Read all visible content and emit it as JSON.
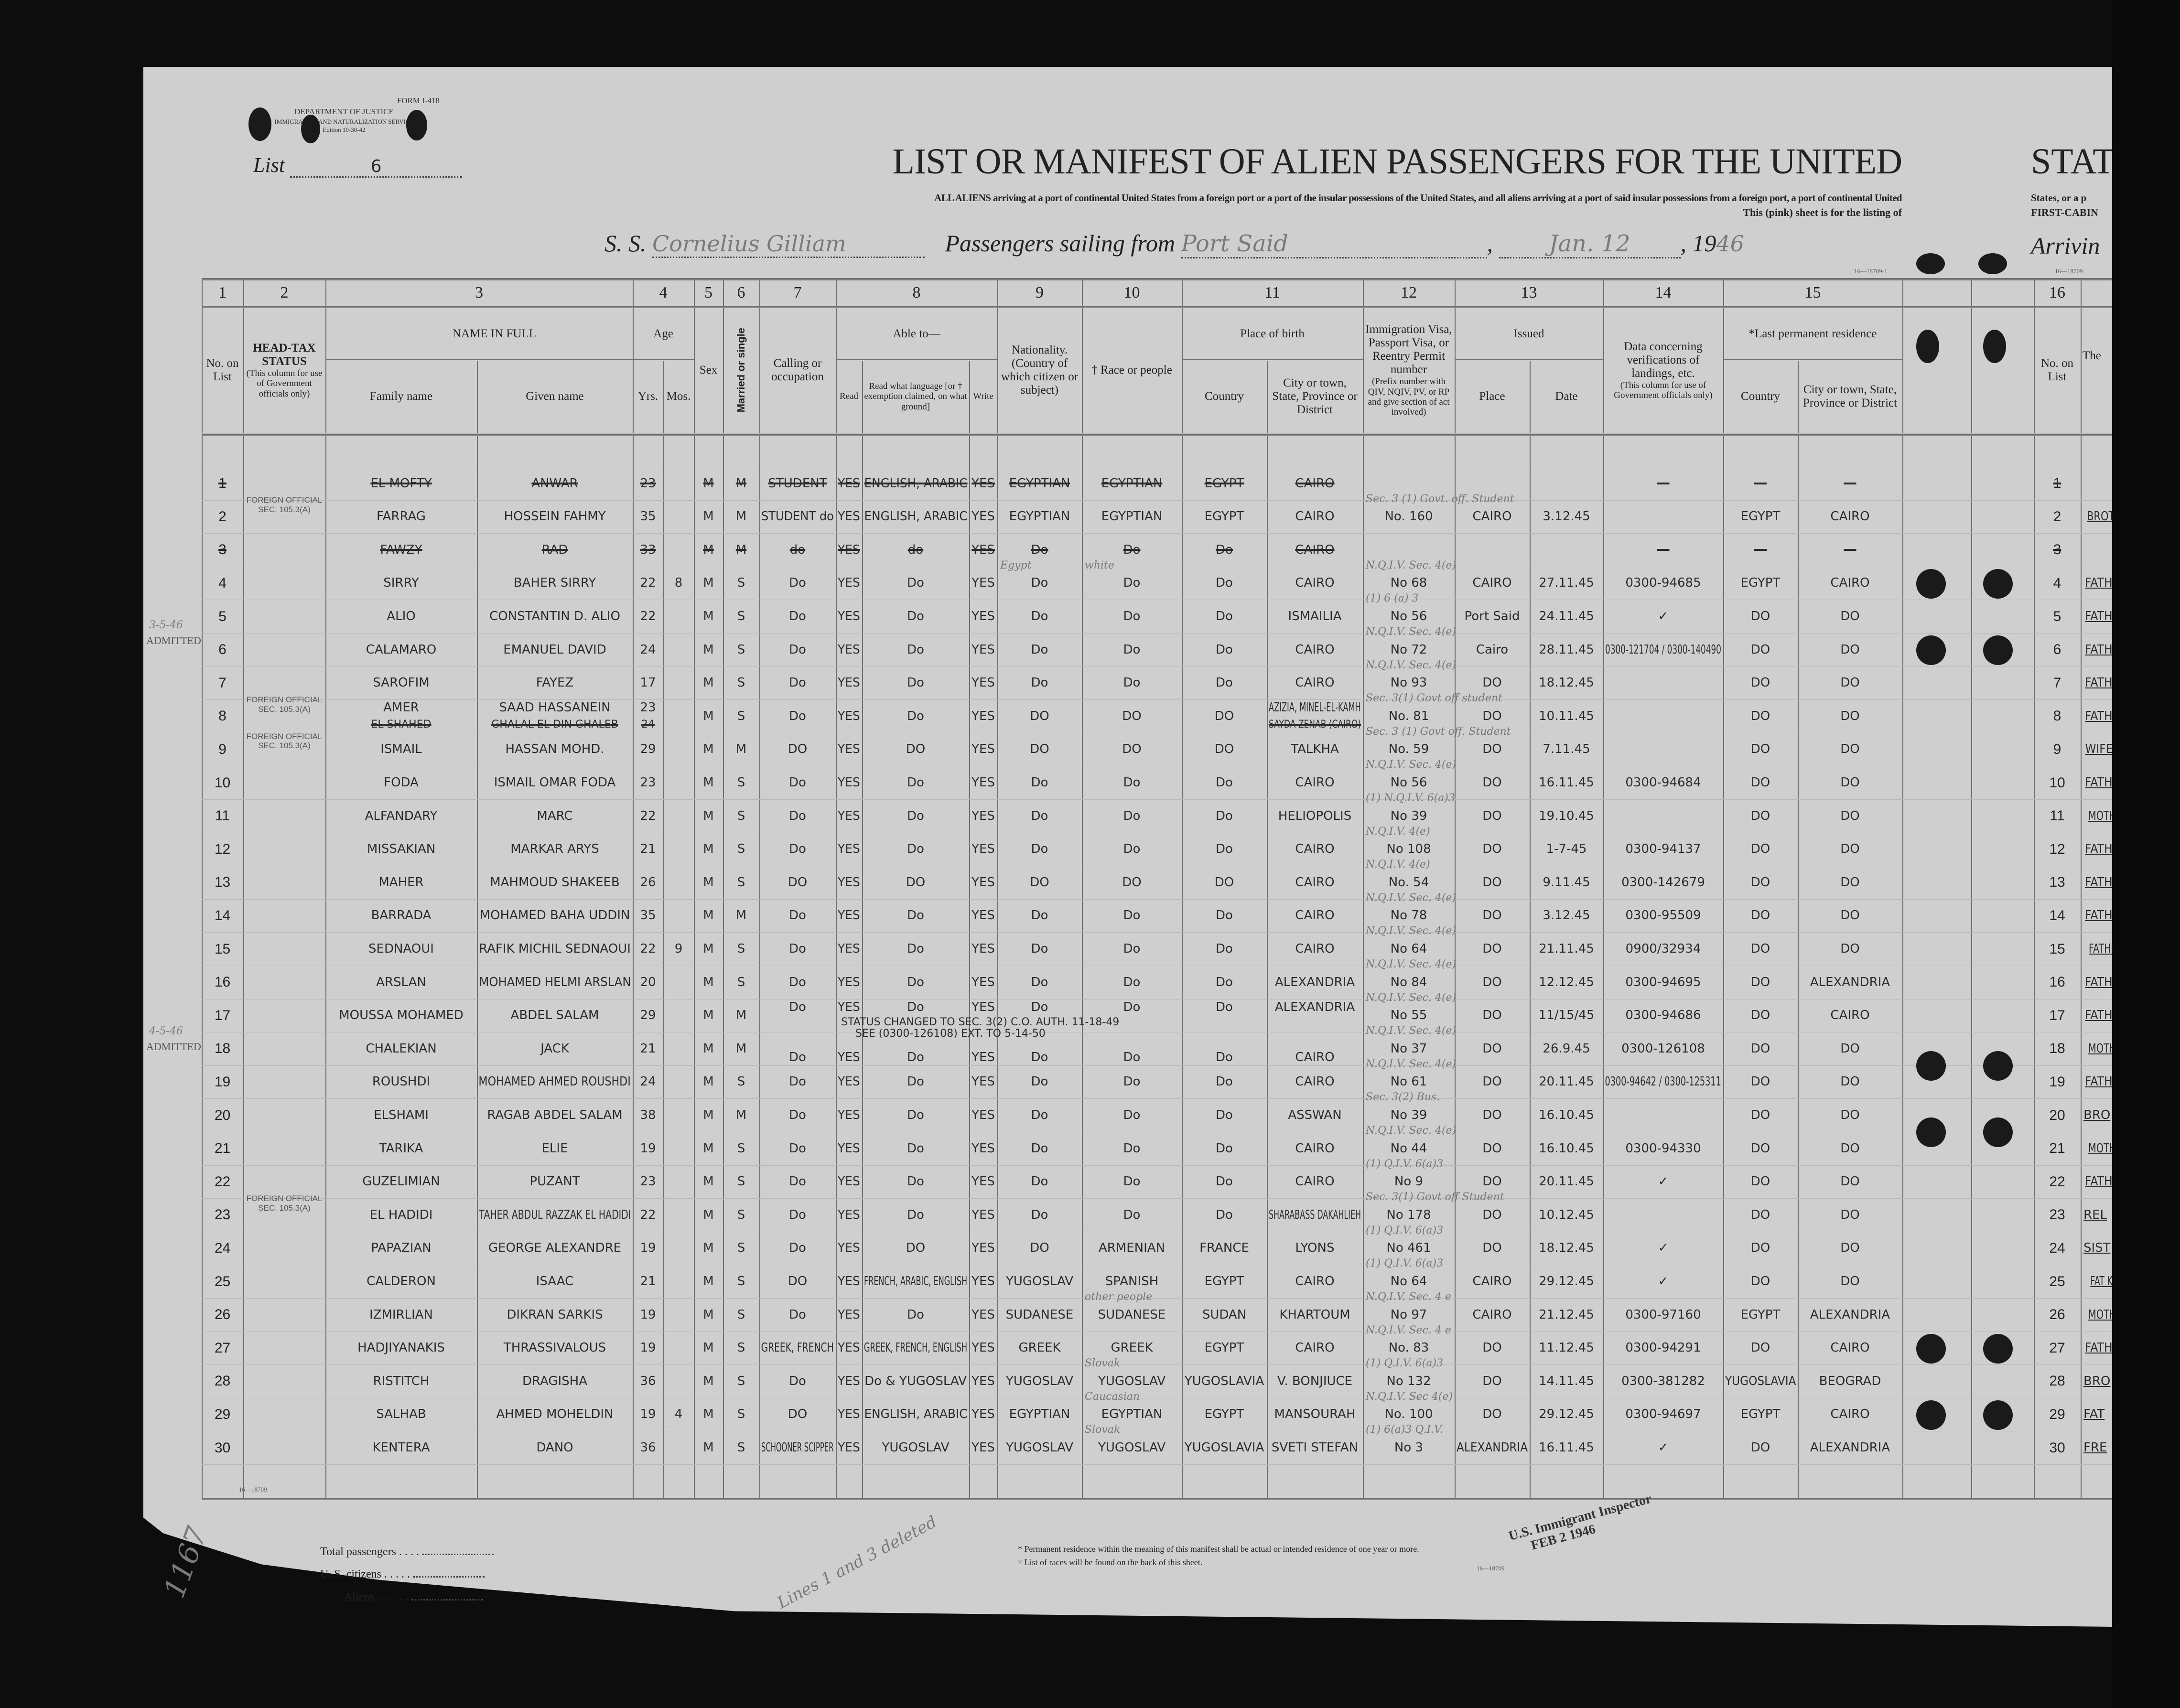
{
  "stamp": {
    "form": "FORM I-418",
    "dept": "DEPARTMENT OF JUSTICE",
    "service": "IMMIGRATION AND NATURALIZATION SERVICE",
    "edition": "Edition 10-30-42"
  },
  "list": {
    "label": "List",
    "value": "6"
  },
  "title": "LIST OR MANIFEST OF ALIEN PASSENGERS FOR THE UNITED",
  "subtitle": "ALL ALIENS arriving at a port of continental United States from a foreign port or a port of the insular possessions of the United States, and all aliens arriving at a port of said insular possessions from a foreign port, a port of continental United",
  "sheet_note": "This (pink) sheet is for the listing of",
  "voyage": {
    "ss_label": "S. S.",
    "ship": "Cornelius Gilliam",
    "sailing_label": "Passengers sailing from",
    "port": "Port Said",
    "date": "Jan. 12",
    "year_prefix": "19",
    "year_suffix": "46"
  },
  "right_page": {
    "title_fragment": "STAT",
    "line1": "States, or a p",
    "line2": "FIRST-CABIN",
    "arriving": "Arrivin",
    "col16": "16",
    "no_on_list": "No. on List",
    "col17": "The"
  },
  "form_codes": {
    "top": "16—18709-1",
    "top_right": "16—18709",
    "left_bottom": "16—18709",
    "footer": "16—18709"
  },
  "header": {
    "col_numbers": [
      "1",
      "2",
      "3",
      "4",
      "5",
      "6",
      "7",
      "8",
      "9",
      "10",
      "11",
      "12",
      "13",
      "14",
      "15"
    ],
    "no_on_list": "No. on List",
    "head_tax": "HEAD-TAX STATUS",
    "head_tax_note": "(This column for use of Government officials only)",
    "name_in_full": "NAME IN FULL",
    "family_name": "Family name",
    "given_name": "Given name",
    "age": "Age",
    "yrs": "Yrs.",
    "mos": "Mos.",
    "sex": "Sex",
    "married": "Married or single",
    "calling": "Calling or occupation",
    "able_to": "Able to—",
    "read": "Read",
    "read_lang": "Read what language [or † exemption claimed, on what ground]",
    "write": "Write",
    "nationality": "Nationality. (Country of which citizen or subject)",
    "race": "† Race or people",
    "place_of_birth": "Place of birth",
    "country": "Country",
    "city": "City or town, State, Province or District",
    "visa": "Immigration Visa, Passport Visa, or Reentry Permit number",
    "visa_note": "(Prefix number with QIV, NQIV, PV, or RP and give section of act involved)",
    "issued": "Issued",
    "place": "Place",
    "date": "Date",
    "data14": "Data concerning verifications of landings, etc.",
    "data14_note": "(This column for use of Government officials only)",
    "last_res": "*Last permanent residence",
    "res_country": "Country",
    "res_city": "City or town, State, Province or District"
  },
  "rows": [
    {
      "n": "1",
      "fam": "EL MOFTY",
      "giv": "ANWAR",
      "yrs": "23",
      "mos": "",
      "sex": "M",
      "ms": "M",
      "occ": "STUDENT",
      "read": "YES",
      "lang": "ENGLISH, ARABIC",
      "write": "YES",
      "nat": "EGYPTIAN",
      "race": "EGYPTIAN",
      "bc": "EGYPT",
      "bcity": "CAIRO",
      "visa": "",
      "ip": "",
      "idate": "",
      "ver": "—",
      "rc": "—",
      "rcity": "—",
      "rel": "",
      "struck": true
    },
    {
      "n": "2",
      "tax": "FOREIGN OFFICIAL SEC. 105.3(A)",
      "fam": "FARRAG",
      "giv": "HOSSEIN FAHMY",
      "yrs": "35",
      "mos": "",
      "sex": "M",
      "ms": "M",
      "occ": "STUDENT do",
      "read": "YES",
      "lang": "ENGLISH, ARABIC",
      "write": "YES",
      "nat": "EGYPTIAN",
      "race": "EGYPTIAN",
      "bc": "EGYPT",
      "bcity": "CAIRO",
      "visa": "No. 160",
      "vnote": "Sec. 3 (1) Govt. off. Student",
      "ip": "CAIRO",
      "idate": "3.12.45",
      "ver": "",
      "rc": "EGYPT",
      "rcity": "CAIRO",
      "rel": "BROT"
    },
    {
      "n": "3",
      "fam": "FAWZY",
      "giv": "RAD",
      "yrs": "33",
      "mos": "",
      "sex": "M",
      "ms": "M",
      "occ": "do",
      "read": "YES",
      "lang": "do",
      "write": "YES",
      "nat": "Do",
      "race": "Do",
      "bc": "Do",
      "bcity": "CAIRO",
      "visa": "",
      "ip": "",
      "idate": "",
      "ver": "—",
      "rc": "—",
      "rcity": "—",
      "rel": "",
      "struck": true
    },
    {
      "n": "4",
      "fam": "SIRRY",
      "giv": "BAHER SIRRY",
      "yrs": "22",
      "mos": "8",
      "sex": "M",
      "ms": "S",
      "occ": "Do",
      "read": "YES",
      "lang": "Do",
      "write": "YES",
      "nat": "Do",
      "nat_note": "Egypt",
      "race": "Do",
      "race_note": "white",
      "bc": "Do",
      "bcity": "CAIRO",
      "visa": "No 68",
      "vnote": "N.Q.I.V. Sec. 4(e)",
      "ip": "CAIRO",
      "idate": "27.11.45",
      "ver": "0300-94685",
      "rc": "EGYPT",
      "rcity": "CAIRO",
      "rel": "FATH"
    },
    {
      "n": "5",
      "fam": "ALIO",
      "giv": "CONSTANTIN D. ALIO",
      "yrs": "22",
      "mos": "",
      "sex": "M",
      "ms": "S",
      "occ": "Do",
      "read": "YES",
      "lang": "Do",
      "write": "YES",
      "nat": "Do",
      "race": "Do",
      "bc": "Do",
      "bcity": "ISMAILIA",
      "visa": "No 56",
      "vnote": "(1) 6 (a) 3",
      "ip": "Port Said",
      "idate": "24.11.45",
      "ver": "✓",
      "rc": "DO",
      "rcity": "DO",
      "rel": "FATH"
    },
    {
      "n": "6",
      "fam": "CALAMARO",
      "giv": "EMANUEL DAVID",
      "yrs": "24",
      "mos": "",
      "sex": "M",
      "ms": "S",
      "occ": "Do",
      "read": "YES",
      "lang": "Do",
      "write": "YES",
      "nat": "Do",
      "race": "Do",
      "bc": "Do",
      "bcity": "CAIRO",
      "visa": "No 72",
      "vnote": "N.Q.I.V. Sec. 4(e)",
      "ip": "Cairo",
      "idate": "28.11.45",
      "ver": "0300-121704 / 0300-140490",
      "rc": "DO",
      "rcity": "DO",
      "rel": "FATH"
    },
    {
      "n": "7",
      "fam": "SAROFIM",
      "giv": "FAYEZ",
      "yrs": "17",
      "mos": "",
      "sex": "M",
      "ms": "S",
      "occ": "Do",
      "read": "YES",
      "lang": "Do",
      "write": "YES",
      "nat": "Do",
      "race": "Do",
      "bc": "Do",
      "bcity": "CAIRO",
      "visa": "No 93",
      "vnote": "N.Q.I.V. Sec. 4(e)",
      "ip": "DO",
      "idate": "18.12.45",
      "ver": "",
      "rc": "DO",
      "rcity": "DO",
      "rel": "FATH"
    },
    {
      "n": "8",
      "tax": "FOREIGN OFFICIAL SEC. 105.3(A)",
      "tax2": "FOREIGN OFFICIAL SEC. 105.3(A)",
      "fam": "AMER",
      "giv": "SAAD HASSANEIN",
      "yrs": "23",
      "mos": "",
      "sex": "M",
      "ms": "S",
      "occ": "Do",
      "read": "YES",
      "lang": "Do",
      "write": "YES",
      "nat": "DO",
      "race": "DO",
      "bc": "DO",
      "bcity": "AZIZIA, MINEL-EL-KAMH",
      "visa": "No. 81",
      "vnote": "Sec. 3(1) Govt off student",
      "ip": "DO",
      "idate": "10.11.45",
      "ver": "",
      "rc": "DO",
      "rcity": "DO",
      "rel": "FATH",
      "struck_line": {
        "fam": "EL SHAHED",
        "giv": "GHALAL EL DIN GHALEB",
        "yrs": "24",
        "bcity": "SAYDA ZENAB (CAIRO)"
      }
    },
    {
      "n": "9",
      "fam": "ISMAIL",
      "giv": "HASSAN MOHD.",
      "yrs": "29",
      "mos": "",
      "sex": "M",
      "ms": "M",
      "occ": "DO",
      "read": "YES",
      "lang": "DO",
      "write": "YES",
      "nat": "DO",
      "race": "DO",
      "bc": "DO",
      "bcity": "TALKHA",
      "visa": "No. 59",
      "vnote": "Sec. 3 (1) Govt off. Student",
      "ip": "DO",
      "idate": "7.11.45",
      "ver": "",
      "rc": "DO",
      "rcity": "DO",
      "rel": "WIFE"
    },
    {
      "n": "10",
      "fam": "FODA",
      "giv": "ISMAIL OMAR FODA",
      "yrs": "23",
      "mos": "",
      "sex": "M",
      "ms": "S",
      "occ": "Do",
      "read": "YES",
      "lang": "Do",
      "write": "YES",
      "nat": "Do",
      "race": "Do",
      "bc": "Do",
      "bcity": "CAIRO",
      "visa": "No 56",
      "vnote": "N.Q.I.V. Sec. 4(e)",
      "ip": "DO",
      "idate": "16.11.45",
      "ver": "0300-94684",
      "rc": "DO",
      "rcity": "DO",
      "rel": "FATH"
    },
    {
      "n": "11",
      "fam": "ALFANDARY",
      "giv": "MARC",
      "yrs": "22",
      "mos": "",
      "sex": "M",
      "ms": "S",
      "occ": "Do",
      "read": "YES",
      "lang": "Do",
      "write": "YES",
      "nat": "Do",
      "race": "Do",
      "bc": "Do",
      "bcity": "HELIOPOLIS",
      "visa": "No 39",
      "vnote": "(1) N.Q.I.V. 6(a)3",
      "ip": "DO",
      "idate": "19.10.45",
      "ver": "",
      "rc": "DO",
      "rcity": "DO",
      "rel": "MOTH"
    },
    {
      "n": "12",
      "fam": "MISSAKIAN",
      "giv": "MARKAR ARYS",
      "yrs": "21",
      "mos": "",
      "sex": "M",
      "ms": "S",
      "occ": "Do",
      "read": "YES",
      "lang": "Do",
      "write": "YES",
      "nat": "Do",
      "race": "Do",
      "bc": "Do",
      "bcity": "CAIRO",
      "visa": "No 108",
      "vnote": "N.Q.I.V. 4(e)",
      "ip": "DO",
      "idate": "1-7-45",
      "ver": "0300-94137",
      "rc": "DO",
      "rcity": "DO",
      "rel": "FATH"
    },
    {
      "n": "13",
      "fam": "MAHER",
      "giv": "MAHMOUD SHAKEEB",
      "yrs": "26",
      "mos": "",
      "sex": "M",
      "ms": "S",
      "occ": "DO",
      "read": "YES",
      "lang": "DO",
      "write": "YES",
      "nat": "DO",
      "race": "DO",
      "bc": "DO",
      "bcity": "CAIRO",
      "visa": "No. 54",
      "vnote": "N.Q.I.V. 4(e)",
      "ip": "DO",
      "idate": "9.11.45",
      "ver": "0300-142679",
      "rc": "DO",
      "rcity": "DO",
      "rel": "FATH"
    },
    {
      "n": "14",
      "fam": "BARRADA",
      "giv": "MOHAMED BAHA UDDIN",
      "yrs": "35",
      "mos": "",
      "sex": "M",
      "ms": "M",
      "occ": "Do",
      "read": "YES",
      "lang": "Do",
      "write": "YES",
      "nat": "Do",
      "race": "Do",
      "bc": "Do",
      "bcity": "CAIRO",
      "visa": "No 78",
      "vnote": "N.Q.I.V. Sec. 4(e)",
      "ip": "DO",
      "idate": "3.12.45",
      "ver": "0300-95509",
      "rc": "DO",
      "rcity": "DO",
      "rel": "FATH"
    },
    {
      "n": "15",
      "fam": "SEDNAOUI",
      "giv": "RAFIK MICHIL SEDNAOUI",
      "yrs": "22",
      "mos": "9",
      "sex": "M",
      "ms": "S",
      "occ": "Do",
      "read": "YES",
      "lang": "Do",
      "write": "YES",
      "nat": "Do",
      "race": "Do",
      "bc": "Do",
      "bcity": "CAIRO",
      "visa": "No 64",
      "vnote": "N.Q.I.V. Sec. 4(e)",
      "ip": "DO",
      "idate": "21.11.45",
      "ver": "0900/32934",
      "rc": "DO",
      "rcity": "DO",
      "rel": "FATHE"
    },
    {
      "n": "16",
      "fam": "ARSLAN",
      "giv": "MOHAMED HELMI ARSLAN",
      "yrs": "20",
      "mos": "",
      "sex": "M",
      "ms": "S",
      "occ": "Do",
      "read": "YES",
      "lang": "Do",
      "write": "YES",
      "nat": "Do",
      "race": "Do",
      "bc": "Do",
      "bcity": "ALEXANDRIA",
      "visa": "No 84",
      "vnote": "N.Q.I.V. Sec. 4(e)",
      "ip": "DO",
      "idate": "12.12.45",
      "ver": "0300-94695",
      "rc": "DO",
      "rcity": "ALEXANDRIA",
      "rel": "FATH"
    },
    {
      "n": "17",
      "fam": "MOUSSA MOHAMED",
      "giv": "ABDEL SALAM",
      "yrs": "29",
      "mos": "",
      "sex": "M",
      "ms": "M",
      "occ": "Do",
      "read": "YES",
      "lang": "Do",
      "write": "YES",
      "nat": "Do",
      "race": "Do",
      "bc": "Do",
      "bcity": "ALEXANDRIA",
      "visa": "No 55",
      "vnote": "N.Q.I.V. Sec. 4(e)",
      "ip": "DO",
      "idate": "11/15/45",
      "ver": "0300-94686",
      "rc": "DO",
      "rcity": "CAIRO",
      "rel": "FATH"
    },
    {
      "n": "18",
      "fam": "CHALEKIAN",
      "giv": "JACK",
      "yrs": "21",
      "mos": "",
      "sex": "M",
      "ms": "M",
      "occ": "Do",
      "read": "YES",
      "lang": "Do",
      "write": "YES",
      "nat": "Do",
      "race": "Do",
      "bc": "Do",
      "bcity": "CAIRO",
      "visa": "No 37",
      "vnote": "N.Q.I.V. Sec. 4(e)",
      "ip": "DO",
      "idate": "26.9.45",
      "ver": "0300-126108",
      "rc": "DO",
      "rcity": "DO",
      "rel": "MOTH"
    },
    {
      "n": "19",
      "fam": "ROUSHDI",
      "giv": "MOHAMED AHMED ROUSHDI",
      "yrs": "24",
      "mos": "",
      "sex": "M",
      "ms": "S",
      "occ": "Do",
      "read": "YES",
      "lang": "Do",
      "write": "YES",
      "nat": "Do",
      "race": "Do",
      "bc": "Do",
      "bcity": "CAIRO",
      "visa": "No 61",
      "vnote": "N.Q.I.V. Sec. 4(e)",
      "ip": "DO",
      "idate": "20.11.45",
      "ver": "0300-94642 / 0300-125311",
      "rc": "DO",
      "rcity": "DO",
      "rel": "FATH"
    },
    {
      "n": "20",
      "fam": "ELSHAMI",
      "giv": "RAGAB ABDEL SALAM",
      "yrs": "38",
      "mos": "",
      "sex": "M",
      "ms": "M",
      "occ": "Do",
      "read": "YES",
      "lang": "Do",
      "write": "YES",
      "nat": "Do",
      "race": "Do",
      "bc": "Do",
      "bcity": "ASSWAN",
      "visa": "No 39",
      "vnote": "Sec. 3(2) Bus.",
      "ip": "DO",
      "idate": "16.10.45",
      "ver": "",
      "rc": "DO",
      "rcity": "DO",
      "rel": "BRO"
    },
    {
      "n": "21",
      "fam": "TARIKA",
      "giv": "ELIE",
      "yrs": "19",
      "mos": "",
      "sex": "M",
      "ms": "S",
      "occ": "Do",
      "read": "YES",
      "lang": "Do",
      "write": "YES",
      "nat": "Do",
      "race": "Do",
      "bc": "Do",
      "bcity": "CAIRO",
      "visa": "No 44",
      "vnote": "N.Q.I.V. Sec. 4(e)",
      "ip": "DO",
      "idate": "16.10.45",
      "ver": "0300-94330",
      "rc": "DO",
      "rcity": "DO",
      "rel": "MOTH"
    },
    {
      "n": "22",
      "fam": "GUZELIMIAN",
      "giv": "PUZANT",
      "yrs": "23",
      "mos": "",
      "sex": "M",
      "ms": "S",
      "occ": "Do",
      "read": "YES",
      "lang": "Do",
      "write": "YES",
      "nat": "Do",
      "race": "Do",
      "bc": "Do",
      "bcity": "CAIRO",
      "visa": "No 9",
      "vnote": "(1) Q.I.V. 6(a)3",
      "ip": "DO",
      "idate": "20.11.45",
      "ver": "✓",
      "rc": "DO",
      "rcity": "DO",
      "rel": "FATH"
    },
    {
      "n": "23",
      "tax": "FOREIGN OFFICIAL SEC. 105.3(A)",
      "fam": "EL HADIDI",
      "giv": "TAHER ABDUL RAZZAK EL HADIDI",
      "yrs": "22",
      "mos": "",
      "sex": "M",
      "ms": "S",
      "occ": "Do",
      "read": "YES",
      "lang": "Do",
      "write": "YES",
      "nat": "Do",
      "race": "Do",
      "bc": "Do",
      "bcity": "SHARABASS DAKAHLIEH",
      "visa": "No 178",
      "vnote": "Sec. 3(1) Govt off Student",
      "ip": "DO",
      "idate": "10.12.45",
      "ver": "",
      "rc": "DO",
      "rcity": "DO",
      "rel": "REL"
    },
    {
      "n": "24",
      "fam": "PAPAZIAN",
      "giv": "GEORGE ALEXANDRE",
      "yrs": "19",
      "mos": "",
      "sex": "M",
      "ms": "S",
      "occ": "Do",
      "read": "YES",
      "lang": "DO",
      "write": "YES",
      "nat": "DO",
      "race": "ARMENIAN",
      "bc": "FRANCE",
      "bcity": "LYONS",
      "visa": "No 461",
      "vnote": "(1) Q.I.V. 6(a)3",
      "ip": "DO",
      "idate": "18.12.45",
      "ver": "✓",
      "rc": "DO",
      "rcity": "DO",
      "rel": "SIST"
    },
    {
      "n": "25",
      "fam": "CALDERON",
      "giv": "ISAAC",
      "yrs": "21",
      "mos": "",
      "sex": "M",
      "ms": "S",
      "occ": "DO",
      "read": "YES",
      "lang": "FRENCH, ARABIC, ENGLISH",
      "write": "YES",
      "nat": "YUGOSLAV",
      "race": "SPANISH",
      "bc": "EGYPT",
      "bcity": "CAIRO",
      "visa": "No 64",
      "vnote": "(1) Q.I.V. 6(a)3",
      "ip": "CAIRO",
      "idate": "29.12.45",
      "ver": "✓",
      "rc": "DO",
      "rcity": "DO",
      "rel": "FAT KA"
    },
    {
      "n": "26",
      "fam": "IZMIRLIAN",
      "giv": "DIKRAN SARKIS",
      "yrs": "19",
      "mos": "",
      "sex": "M",
      "ms": "S",
      "occ": "Do",
      "read": "YES",
      "lang": "Do",
      "write": "YES",
      "nat": "SUDANESE",
      "race": "SUDANESE",
      "race_note": "other people",
      "bc": "SUDAN",
      "bcity": "KHARTOUM",
      "visa": "No 97",
      "vnote": "N.Q.I.V. Sec. 4 e",
      "ip": "CAIRO",
      "idate": "21.12.45",
      "ver": "0300-97160",
      "rc": "EGYPT",
      "rcity": "ALEXANDRIA",
      "rel": "MOTH"
    },
    {
      "n": "27",
      "fam": "HADJIYANAKIS",
      "giv": "THRASSIVALOUS",
      "yrs": "19",
      "mos": "",
      "sex": "M",
      "ms": "S",
      "occ": "GREEK, FRENCH",
      "read": "YES",
      "lang": "GREEK, FRENCH, ENGLISH",
      "write": "YES",
      "nat": "GREEK",
      "race": "GREEK",
      "bc": "EGYPT",
      "bcity": "CAIRO",
      "visa": "No. 83",
      "vnote": "N.Q.I.V. Sec. 4 e",
      "ip": "DO",
      "idate": "11.12.45",
      "ver": "0300-94291",
      "rc": "DO",
      "rcity": "CAIRO",
      "rel": "FATH"
    },
    {
      "n": "28",
      "fam": "RISTITCH",
      "giv": "DRAGISHA",
      "yrs": "36",
      "mos": "",
      "sex": "M",
      "ms": "S",
      "occ": "Do",
      "read": "YES",
      "lang": "Do & YUGOSLAV",
      "write": "YES",
      "nat": "YUGOSLAV",
      "race": "YUGOSLAV",
      "race_note": "Slovak",
      "bc": "YUGOSLAVIA",
      "bcity": "V. BONJIUCE",
      "visa": "No 132",
      "vnote": "(1) Q.I.V. 6(a)3",
      "ip": "DO",
      "idate": "14.11.45",
      "ver": "0300-381282",
      "rc": "YUGOSLAVIA",
      "rcity": "BEOGRAD",
      "rel": "BRO"
    },
    {
      "n": "29",
      "fam": "SALHAB",
      "giv": "AHMED MOHELDIN",
      "yrs": "19",
      "mos": "4",
      "sex": "M",
      "ms": "S",
      "occ": "DO",
      "read": "YES",
      "lang": "ENGLISH, ARABIC",
      "write": "YES",
      "nat": "EGYPTIAN",
      "race": "EGYPTIAN",
      "race_note": "Caucasian",
      "bc": "EGYPT",
      "bcity": "MANSOURAH",
      "visa": "No. 100",
      "vnote": "N.Q.I.V. Sec 4(e)",
      "ip": "DO",
      "idate": "29.12.45",
      "ver": "0300-94697",
      "rc": "EGYPT",
      "rcity": "CAIRO",
      "rel": "FAT"
    },
    {
      "n": "30",
      "fam": "KENTERA",
      "giv": "DANO",
      "yrs": "36",
      "mos": "",
      "sex": "M",
      "ms": "S",
      "occ": "SCHOONER SCIPPER",
      "read": "YES",
      "lang": "YUGOSLAV",
      "write": "YES",
      "nat": "YUGOSLAV",
      "race": "YUGOSLAV",
      "race_note": "Slovak",
      "bc": "YUGOSLAVIA",
      "bcity": "SVETI STEFAN",
      "visa": "No 3",
      "vnote": "(1) 6(a)3 Q.I.V.",
      "ip": "ALEXANDRIA",
      "idate": "16.11.45",
      "ver": "✓",
      "rc": "DO",
      "rcity": "ALEXANDRIA",
      "rel": "FRE"
    }
  ],
  "annotations": {
    "status_change": "STATUS CHANGED TO SEC. 3(2) C.O. AUTH. 11-18-49",
    "status_change_2": "SEE (0300-126108) EXT. TO 5-14-50",
    "margin_1_date": "3-5-46",
    "margin_1_stamp": "ADMITTED",
    "margin_2_date": "4-5-46",
    "margin_2_stamp": "ADMITTED",
    "lines_deleted": "Lines 1 and 3 deleted",
    "page_number": "1167",
    "inspector_stamp_1": "U.S. Immigrant Inspector",
    "inspector_stamp_2": "FEB 2 1946"
  },
  "footer": {
    "total_passengers": "Total passengers",
    "us_citizens": "U. S. citizens",
    "aliens": "Aliens",
    "footnote_1": "* Permanent residence within the meaning of this manifest shall be actual or intended residence of one year or more.",
    "footnote_2": "† List of races will be found on the back of this sheet."
  }
}
